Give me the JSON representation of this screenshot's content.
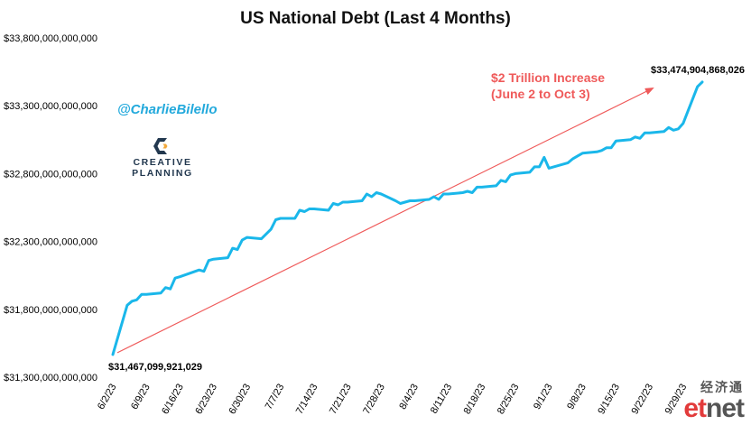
{
  "chart_data": {
    "type": "line",
    "title": "US National Debt (Last 4 Months)",
    "ylim": [
      31300000000000,
      33800000000000
    ],
    "y_ticks": [
      31300000000000,
      31800000000000,
      32300000000000,
      32800000000000,
      33300000000000,
      33800000000000
    ],
    "y_tick_labels": [
      "$31,300,000,000,000",
      "$31,800,000,000,000",
      "$32,300,000,000,000",
      "$32,800,000,000,000",
      "$33,300,000,000,000",
      "$33,800,000,000,000"
    ],
    "x_tick_labels": [
      "6/2/23",
      "6/9/23",
      "6/16/23",
      "6/23/23",
      "6/30/23",
      "7/7/23",
      "7/14/23",
      "7/21/23",
      "7/28/23",
      "8/4/23",
      "8/11/23",
      "8/18/23",
      "8/25/23",
      "9/1/23",
      "9/8/23",
      "9/15/23",
      "9/22/23",
      "9/29/23"
    ],
    "x_tick_dates": [
      "2023-06-02",
      "2023-06-09",
      "2023-06-16",
      "2023-06-23",
      "2023-06-30",
      "2023-07-07",
      "2023-07-14",
      "2023-07-21",
      "2023-07-28",
      "2023-08-04",
      "2023-08-11",
      "2023-08-18",
      "2023-08-25",
      "2023-09-01",
      "2023-09-08",
      "2023-09-15",
      "2023-09-22",
      "2023-09-29"
    ],
    "x_range": [
      "2023-06-02",
      "2023-10-03"
    ],
    "grid": false,
    "series": [
      {
        "color": "#1ab7ea",
        "points": [
          [
            "2023-06-02",
            31467099921029
          ],
          [
            "2023-06-05",
            31830000000000
          ],
          [
            "2023-06-06",
            31860000000000
          ],
          [
            "2023-06-07",
            31870000000000
          ],
          [
            "2023-06-08",
            31910000000000
          ],
          [
            "2023-06-09",
            31910000000000
          ],
          [
            "2023-06-12",
            31920000000000
          ],
          [
            "2023-06-13",
            31960000000000
          ],
          [
            "2023-06-14",
            31950000000000
          ],
          [
            "2023-06-15",
            32030000000000
          ],
          [
            "2023-06-16",
            32040000000000
          ],
          [
            "2023-06-20",
            32090000000000
          ],
          [
            "2023-06-21",
            32080000000000
          ],
          [
            "2023-06-22",
            32160000000000
          ],
          [
            "2023-06-23",
            32170000000000
          ],
          [
            "2023-06-26",
            32180000000000
          ],
          [
            "2023-06-27",
            32250000000000
          ],
          [
            "2023-06-28",
            32240000000000
          ],
          [
            "2023-06-29",
            32310000000000
          ],
          [
            "2023-06-30",
            32330000000000
          ],
          [
            "2023-07-03",
            32320000000000
          ],
          [
            "2023-07-05",
            32390000000000
          ],
          [
            "2023-07-06",
            32460000000000
          ],
          [
            "2023-07-07",
            32470000000000
          ],
          [
            "2023-07-10",
            32470000000000
          ],
          [
            "2023-07-11",
            32530000000000
          ],
          [
            "2023-07-12",
            32520000000000
          ],
          [
            "2023-07-13",
            32540000000000
          ],
          [
            "2023-07-14",
            32540000000000
          ],
          [
            "2023-07-17",
            32530000000000
          ],
          [
            "2023-07-18",
            32580000000000
          ],
          [
            "2023-07-19",
            32570000000000
          ],
          [
            "2023-07-20",
            32590000000000
          ],
          [
            "2023-07-21",
            32590000000000
          ],
          [
            "2023-07-24",
            32600000000000
          ],
          [
            "2023-07-25",
            32650000000000
          ],
          [
            "2023-07-26",
            32630000000000
          ],
          [
            "2023-07-27",
            32660000000000
          ],
          [
            "2023-07-28",
            32650000000000
          ],
          [
            "2023-07-31",
            32600000000000
          ],
          [
            "2023-08-01",
            32580000000000
          ],
          [
            "2023-08-02",
            32590000000000
          ],
          [
            "2023-08-03",
            32600000000000
          ],
          [
            "2023-08-04",
            32600000000000
          ],
          [
            "2023-08-07",
            32610000000000
          ],
          [
            "2023-08-08",
            32630000000000
          ],
          [
            "2023-08-09",
            32610000000000
          ],
          [
            "2023-08-10",
            32650000000000
          ],
          [
            "2023-08-11",
            32650000000000
          ],
          [
            "2023-08-14",
            32660000000000
          ],
          [
            "2023-08-15",
            32670000000000
          ],
          [
            "2023-08-16",
            32660000000000
          ],
          [
            "2023-08-17",
            32700000000000
          ],
          [
            "2023-08-18",
            32700000000000
          ],
          [
            "2023-08-21",
            32710000000000
          ],
          [
            "2023-08-22",
            32750000000000
          ],
          [
            "2023-08-23",
            32740000000000
          ],
          [
            "2023-08-24",
            32790000000000
          ],
          [
            "2023-08-25",
            32800000000000
          ],
          [
            "2023-08-28",
            32810000000000
          ],
          [
            "2023-08-29",
            32850000000000
          ],
          [
            "2023-08-30",
            32850000000000
          ],
          [
            "2023-08-31",
            32920000000000
          ],
          [
            "2023-09-01",
            32840000000000
          ],
          [
            "2023-09-05",
            32880000000000
          ],
          [
            "2023-09-06",
            32910000000000
          ],
          [
            "2023-09-07",
            32930000000000
          ],
          [
            "2023-09-08",
            32950000000000
          ],
          [
            "2023-09-11",
            32960000000000
          ],
          [
            "2023-09-12",
            32970000000000
          ],
          [
            "2023-09-13",
            32990000000000
          ],
          [
            "2023-09-14",
            32990000000000
          ],
          [
            "2023-09-15",
            33040000000000
          ],
          [
            "2023-09-18",
            33050000000000
          ],
          [
            "2023-09-19",
            33070000000000
          ],
          [
            "2023-09-20",
            33060000000000
          ],
          [
            "2023-09-21",
            33100000000000
          ],
          [
            "2023-09-22",
            33100000000000
          ],
          [
            "2023-09-25",
            33110000000000
          ],
          [
            "2023-09-26",
            33140000000000
          ],
          [
            "2023-09-27",
            33120000000000
          ],
          [
            "2023-09-28",
            33130000000000
          ],
          [
            "2023-09-29",
            33170000000000
          ],
          [
            "2023-10-02",
            33440000000000
          ],
          [
            "2023-10-03",
            33474904868026
          ]
        ]
      }
    ],
    "annotations": {
      "start_label": "$31,467,099,921,029",
      "end_label": "$33,474,904,868,026",
      "increase_line1": "$2 Trillion Increase",
      "increase_line2": "(June 2 to Oct 3)",
      "arrow_color": "#ef5a5a"
    }
  },
  "branding": {
    "handle": "@CharlieBilello",
    "logo_line1": "CREATIVE",
    "logo_line2": "PLANNING",
    "logo_color": "#22384f",
    "watermark_cn": "经济通",
    "watermark_prefix": "et",
    "watermark_suffix": "net"
  }
}
